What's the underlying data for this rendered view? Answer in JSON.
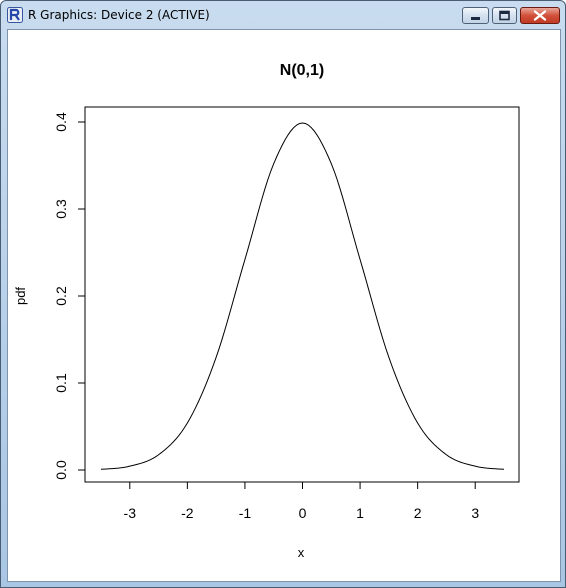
{
  "window": {
    "title": "R Graphics: Device 2 (ACTIVE)",
    "icon": "r-logo-icon",
    "controls": [
      "minimize-icon",
      "maximize-icon",
      "close-icon"
    ]
  },
  "chart_data": {
    "type": "line",
    "title": "N(0,1)",
    "xlabel": "x",
    "ylabel": "pdf",
    "xlim": [
      -3.5,
      3.5
    ],
    "ylim": [
      0,
      0.4
    ],
    "xticks": [
      "-3",
      "-2",
      "-1",
      "0",
      "1",
      "2",
      "3"
    ],
    "yticks": [
      "0.0",
      "0.1",
      "0.2",
      "0.3",
      "0.4"
    ],
    "grid": false,
    "series": [
      {
        "x": [
          -3.5,
          -3.0,
          -2.5,
          -2.0,
          -1.5,
          -1.0,
          -0.5,
          0.0,
          0.5,
          1.0,
          1.5,
          2.0,
          2.5,
          3.0,
          3.5
        ],
        "y": [
          0.0009,
          0.0044,
          0.0175,
          0.054,
          0.1295,
          0.242,
          0.3521,
          0.3989,
          0.3521,
          0.242,
          0.1295,
          0.054,
          0.0175,
          0.0044,
          0.0009
        ]
      }
    ]
  }
}
